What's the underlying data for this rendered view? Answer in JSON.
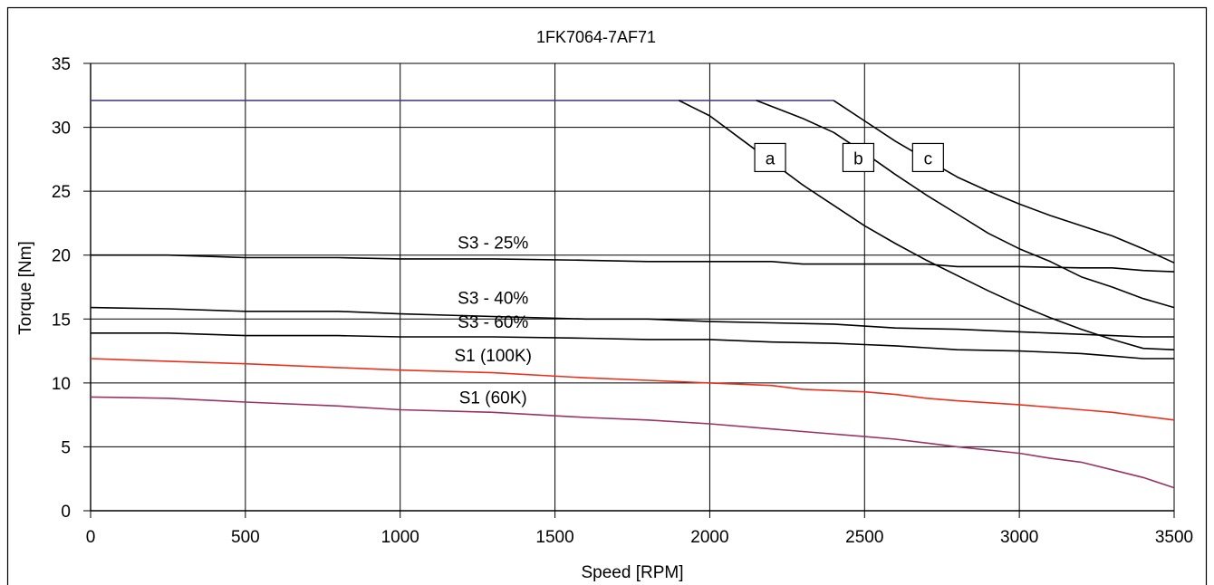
{
  "chart_data": {
    "type": "line",
    "title": "1FK7064-7AF71",
    "xlabel": "Speed [RPM]",
    "ylabel": "Torque [Nm]",
    "xlim": [
      0,
      3500
    ],
    "ylim": [
      0,
      35
    ],
    "xticks": [
      0,
      500,
      1000,
      1500,
      2000,
      2500,
      3000,
      3500
    ],
    "yticks": [
      0,
      5,
      10,
      15,
      20,
      25,
      30,
      35
    ],
    "grid": true,
    "series": [
      {
        "name": "",
        "color": "#4b3f8c",
        "x": [
          0,
          1900,
          2150,
          2400
        ],
        "y": [
          32.1,
          32.1,
          32.1,
          32.1
        ]
      },
      {
        "name": "a",
        "color": "#000000",
        "x": [
          1900,
          2000,
          2100,
          2200,
          2300,
          2400,
          2500,
          2600,
          2700,
          2800,
          2900,
          3000,
          3100,
          3200,
          3300,
          3400,
          3500
        ],
        "y": [
          32.1,
          30.9,
          29.1,
          27.3,
          25.5,
          23.9,
          22.3,
          20.9,
          19.6,
          18.4,
          17.2,
          16.1,
          15.1,
          14.2,
          13.4,
          12.7,
          12.6
        ]
      },
      {
        "name": "b",
        "color": "#000000",
        "x": [
          2150,
          2300,
          2400,
          2500,
          2600,
          2700,
          2800,
          2900,
          3000,
          3100,
          3200,
          3300,
          3400,
          3500
        ],
        "y": [
          32.1,
          30.7,
          29.6,
          28.0,
          26.3,
          24.7,
          23.2,
          21.7,
          20.5,
          19.5,
          18.3,
          17.5,
          16.6,
          15.9
        ]
      },
      {
        "name": "c",
        "color": "#000000",
        "x": [
          2400,
          2500,
          2600,
          2700,
          2800,
          2900,
          3000,
          3100,
          3200,
          3300,
          3400,
          3500
        ],
        "y": [
          32.1,
          30.5,
          28.9,
          27.5,
          26.1,
          25.0,
          24.0,
          23.1,
          22.3,
          21.5,
          20.5,
          19.4
        ]
      },
      {
        "name": "S3 - 25%",
        "color": "#000000",
        "x": [
          0,
          250,
          500,
          800,
          1000,
          1300,
          1600,
          1800,
          2000,
          2200,
          2300,
          2500,
          2700,
          2800,
          3000,
          3200,
          3300,
          3400,
          3500
        ],
        "y": [
          20.0,
          20.0,
          19.8,
          19.8,
          19.7,
          19.7,
          19.6,
          19.5,
          19.5,
          19.5,
          19.3,
          19.3,
          19.3,
          19.1,
          19.1,
          19.0,
          19.0,
          18.8,
          18.7
        ]
      },
      {
        "name": "S3 - 40%",
        "color": "#000000",
        "x": [
          0,
          250,
          500,
          800,
          1000,
          1300,
          1600,
          1800,
          2000,
          2200,
          2400,
          2600,
          2800,
          3000,
          3100,
          3200,
          3300,
          3400,
          3500
        ],
        "y": [
          15.9,
          15.8,
          15.6,
          15.6,
          15.4,
          15.2,
          15.0,
          15.0,
          14.8,
          14.7,
          14.6,
          14.3,
          14.2,
          14.0,
          13.9,
          13.8,
          13.7,
          13.6,
          13.6
        ]
      },
      {
        "name": "S3 - 60%",
        "color": "#000000",
        "x": [
          0,
          250,
          500,
          800,
          1000,
          1300,
          1600,
          1800,
          2000,
          2200,
          2400,
          2500,
          2600,
          2800,
          3000,
          3100,
          3200,
          3300,
          3400,
          3500
        ],
        "y": [
          13.9,
          13.9,
          13.7,
          13.7,
          13.6,
          13.6,
          13.5,
          13.4,
          13.4,
          13.2,
          13.1,
          13.0,
          12.9,
          12.6,
          12.5,
          12.4,
          12.3,
          12.1,
          11.9,
          11.9
        ]
      },
      {
        "name": "S1 (100K)",
        "color": "#e8321e",
        "x": [
          0,
          250,
          500,
          800,
          1000,
          1300,
          1600,
          1800,
          2000,
          2200,
          2300,
          2500,
          2600,
          2700,
          2800,
          3000,
          3100,
          3200,
          3300,
          3400,
          3500
        ],
        "y": [
          11.9,
          11.7,
          11.5,
          11.2,
          11.0,
          10.8,
          10.4,
          10.2,
          10.0,
          9.8,
          9.5,
          9.3,
          9.1,
          8.8,
          8.6,
          8.3,
          8.1,
          7.9,
          7.7,
          7.4,
          7.1
        ]
      },
      {
        "name": "S1 (60K)",
        "color": "#993366",
        "x": [
          0,
          250,
          500,
          800,
          1000,
          1300,
          1600,
          1800,
          2000,
          2200,
          2300,
          2500,
          2600,
          2700,
          2800,
          3000,
          3100,
          3200,
          3300,
          3400,
          3500
        ],
        "y": [
          8.9,
          8.8,
          8.5,
          8.2,
          7.9,
          7.7,
          7.3,
          7.1,
          6.8,
          6.4,
          6.2,
          5.8,
          5.6,
          5.3,
          5.0,
          4.5,
          4.1,
          3.8,
          3.2,
          2.6,
          1.8
        ]
      }
    ],
    "labels": [
      {
        "text": "S3 - 25%",
        "x": 1300,
        "y": 20.5
      },
      {
        "text": "S3 - 40%",
        "x": 1300,
        "y": 16.2
      },
      {
        "text": "S3 - 60%",
        "x": 1300,
        "y": 14.3
      },
      {
        "text": "S1 (100K)",
        "x": 1300,
        "y": 11.7
      },
      {
        "text": "S1 (60K)",
        "x": 1300,
        "y": 8.4
      }
    ],
    "boxes": [
      {
        "text": "a",
        "x": 2195,
        "y": 27.6
      },
      {
        "text": "b",
        "x": 2480,
        "y": 27.6
      },
      {
        "text": "c",
        "x": 2705,
        "y": 27.6
      }
    ]
  }
}
